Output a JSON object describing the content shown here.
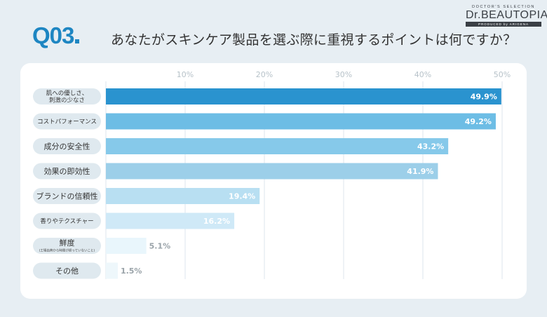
{
  "header": {
    "question_number": "Q03",
    "question_text": "あなたがスキンケア製品を選ぶ際に重視するポイントは何ですか？"
  },
  "logo": {
    "top": "DOCTOR'S SELECTION",
    "main": "Dr.BEAUTOPIA",
    "bottom": "PRODUCED by ARIGENA"
  },
  "chart_data": {
    "type": "bar",
    "orientation": "horizontal",
    "categories": [
      {
        "label": "肌への優しさ、",
        "label2": "刺激の少なさ"
      },
      {
        "label": "コストパフォーマンス"
      },
      {
        "label": "成分の安全性"
      },
      {
        "label": "効果の即効性"
      },
      {
        "label": "ブランドの信頼性"
      },
      {
        "label": "香りやテクスチャー"
      },
      {
        "label": "鮮度",
        "label2": "(工場出荷から時間が経っていないこと)"
      },
      {
        "label": "その他"
      }
    ],
    "values": [
      49.9,
      49.2,
      43.2,
      41.9,
      19.4,
      16.2,
      5.1,
      1.5
    ],
    "value_labels": [
      "49.9%",
      "49.2%",
      "43.2%",
      "41.9%",
      "19.4%",
      "16.2%",
      "5.1%",
      "1.5%"
    ],
    "ticks": [
      "10%",
      "20%",
      "30%",
      "40%",
      "50%"
    ],
    "tick_values": [
      10,
      20,
      30,
      40,
      50
    ],
    "xlim": [
      0,
      50
    ],
    "colors": [
      "#2a93cf",
      "#6dbde5",
      "#86c9ea",
      "#9ccfe9",
      "#b8dff2",
      "#cfe9f7",
      "#e9f6fc",
      "#eef7fb"
    ],
    "label_colors": [
      "#ffffff",
      "#ffffff",
      "#ffffff",
      "#ffffff",
      "#ffffff",
      "#ffffff",
      "#9aa3a9",
      "#9aa3a9"
    ],
    "grid": true
  }
}
